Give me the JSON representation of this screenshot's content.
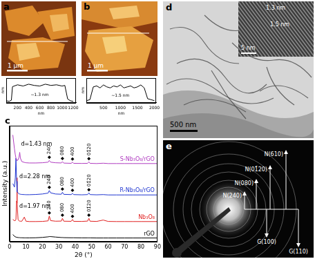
{
  "figure": {
    "a": {
      "label": "a",
      "scale_bar": "1 μm"
    },
    "b": {
      "label": "b",
      "scale_bar": "1 μm"
    },
    "c": {
      "label": "c"
    },
    "d": {
      "label": "d",
      "scale_bar": "500 nm",
      "inset": {
        "scale_bar": "5 nm",
        "spacings": [
          "1.3 nm",
          "1.5 nm"
        ]
      }
    },
    "e": {
      "label": "e",
      "up": [
        "N(240)",
        "N(080)",
        "N(01̄20)",
        "N(610)"
      ],
      "down": [
        "G(100)",
        "G(110)"
      ]
    }
  },
  "chart_data": [
    {
      "type": "line",
      "x_label": "nm",
      "y_label": "nm",
      "x": [
        0,
        50,
        90,
        110,
        200,
        300,
        400,
        500,
        600,
        700,
        800,
        900,
        1000,
        1050,
        1100,
        1150,
        1200
      ],
      "series": [
        {
          "color": "#000000",
          "values": [
            0.15,
            0.1,
            0.2,
            1.3,
            1.45,
            1.35,
            1.5,
            1.4,
            1.35,
            1.5,
            1.4,
            1.45,
            1.35,
            1.4,
            0.3,
            0.15,
            0.1
          ]
        }
      ],
      "xlim": [
        0,
        1250
      ],
      "xticks": [
        200,
        400,
        600,
        800,
        1000,
        1200
      ],
      "ylim": [
        0,
        2
      ],
      "tick_labels": "x",
      "grid": false,
      "annotations": [
        {
          "text": "~1.3 nm",
          "x": 600,
          "y": 0.6
        }
      ]
    },
    {
      "type": "line",
      "x_label": "nm",
      "y_label": "nm",
      "x": [
        0,
        100,
        200,
        300,
        400,
        500,
        600,
        700,
        800,
        900,
        1000,
        1100,
        1200,
        1300,
        1400,
        1500,
        1600,
        1700,
        1800,
        1900,
        2000
      ],
      "series": [
        {
          "color": "#000000",
          "values": [
            0.2,
            0.3,
            1.6,
            1.7,
            1.5,
            1.8,
            1.6,
            1.5,
            1.7,
            1.6,
            1.8,
            1.5,
            1.6,
            1.7,
            1.5,
            1.6,
            1.8,
            1.5,
            0.4,
            0.3,
            0.2
          ]
        }
      ],
      "xlim": [
        0,
        2050
      ],
      "xticks": [
        500,
        1000,
        1500,
        2000
      ],
      "ylim": [
        0,
        2.5
      ],
      "tick_labels": "x",
      "grid": false,
      "annotations": [
        {
          "text": "~1.5 nm",
          "x": 1000,
          "y": 0.7
        }
      ]
    },
    {
      "type": "line",
      "x_label": "2θ (°)",
      "y_label": "Intensity (a.u.)",
      "x": [
        2,
        3,
        3.5,
        3.9,
        4.3,
        4.5,
        4.7,
        5.2,
        5.8,
        6.2,
        6.6,
        7.5,
        9,
        10,
        12,
        16,
        20,
        23.5,
        24.2,
        25,
        28,
        31.5,
        32.2,
        33,
        37.5,
        38.3,
        39,
        44,
        47.5,
        48.3,
        49,
        53,
        57,
        60,
        65,
        70,
        75,
        80,
        85,
        90
      ],
      "series": [
        {
          "name": "S-Nb₃O₈/rGO",
          "color": "#b03cc0",
          "values": [
            92,
            80,
            75,
            72,
            70.5,
            70,
            70,
            70.5,
            73,
            77,
            72,
            69,
            68.3,
            68,
            67.8,
            67.8,
            68,
            68.5,
            70,
            68.5,
            68,
            67.8,
            69,
            67.7,
            67.5,
            68.5,
            67.5,
            67.4,
            67.5,
            68.8,
            67.5,
            67.3,
            67.6,
            67.3,
            67.3,
            67.3,
            67.3,
            67.3,
            67.3,
            67.3
          ],
          "peak_labels": [
            {
              "x": 24.2,
              "label": "240"
            },
            {
              "x": 32.2,
              "label": "080"
            },
            {
              "x": 38.3,
              "label": "400"
            },
            {
              "x": 48.3,
              "label": "01̄20"
            }
          ]
        },
        {
          "name": "R-Nb₃O₈/rGO",
          "color": "#1f35d0",
          "values": [
            50,
            47,
            55,
            72,
            52,
            45,
            43,
            42,
            41,
            41,
            40.8,
            40.6,
            40.5,
            40.4,
            40.4,
            40.6,
            41,
            41.8,
            44,
            42,
            41,
            40.8,
            42.5,
            40.7,
            40.5,
            41.5,
            40.5,
            40.3,
            40.5,
            42,
            40.5,
            40.3,
            40.5,
            40.2,
            40.2,
            40.2,
            40.2,
            40.2,
            40.2,
            40.2
          ],
          "peak_labels": [
            {
              "x": 24.2,
              "label": "240"
            },
            {
              "x": 32.2,
              "label": "080"
            },
            {
              "x": 38.3,
              "label": "400"
            },
            {
              "x": 48.3,
              "label": "01̄20"
            }
          ]
        },
        {
          "name": "Nb₃O₈",
          "color": "#e02020",
          "values": [
            19,
            18,
            18,
            19,
            35,
            55,
            33,
            19,
            17.8,
            17.5,
            17.5,
            17.5,
            21,
            17.5,
            17.2,
            17.2,
            17.3,
            17.8,
            22,
            18,
            17.5,
            17.6,
            20,
            17.5,
            17.4,
            19,
            17.4,
            17.3,
            17.6,
            20,
            17.5,
            17.3,
            18.5,
            17.3,
            17.2,
            17.2,
            17.2,
            17.2,
            17.2,
            17.2
          ],
          "peak_labels": [
            {
              "x": 24.2,
              "label": "240"
            },
            {
              "x": 32.2,
              "label": "080"
            },
            {
              "x": 38.3,
              "label": "400"
            },
            {
              "x": 48.3,
              "label": "01̄20"
            }
          ]
        },
        {
          "name": "rGO",
          "color": "#000000",
          "values": [
            6,
            4.5,
            4,
            3.8,
            3.6,
            3.5,
            3.5,
            3.4,
            3.3,
            3.3,
            3.2,
            3.2,
            3.1,
            3.1,
            3.1,
            3.2,
            3.5,
            4,
            4.2,
            4.2,
            3.8,
            3.4,
            3.4,
            3.3,
            3.2,
            3.2,
            3.2,
            3.1,
            3.1,
            3.1,
            3.1,
            3,
            3,
            3,
            3,
            3,
            3,
            3,
            3,
            3
          ]
        }
      ],
      "xlim": [
        0,
        90
      ],
      "xticks": [
        0,
        10,
        20,
        30,
        40,
        50,
        60,
        70,
        80,
        90
      ],
      "ylim": [
        0,
        100
      ],
      "tick_labels": "x",
      "grid": false,
      "annotations": [
        {
          "text": "d=1.43 nm",
          "x": 7,
          "y": 84
        },
        {
          "text": "d=2.28 nm",
          "x": 6,
          "y": 56
        },
        {
          "text": "d=1.97 nm",
          "x": 6,
          "y": 30
        }
      ]
    }
  ]
}
